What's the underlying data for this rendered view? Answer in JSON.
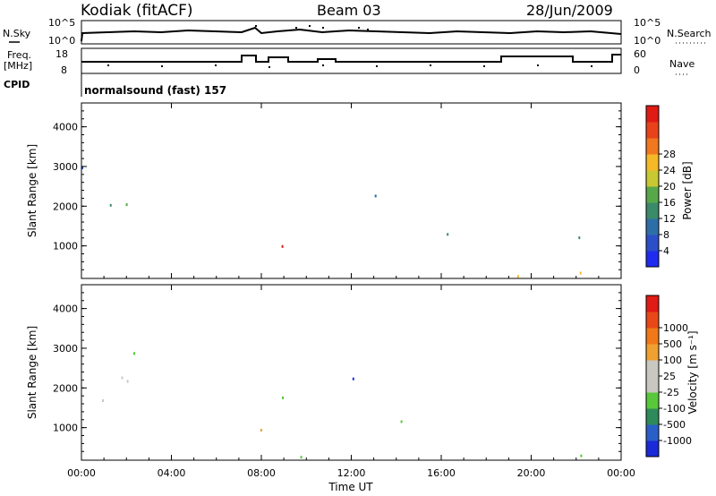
{
  "header": {
    "station": "Kodiak (fitACF)",
    "beam": "Beam 03",
    "date": "28/Jun/2009"
  },
  "summary": {
    "nsky_label": "N.Sky",
    "nsky_ticks": [
      "10^5",
      "10^0"
    ],
    "nsearch_label": "N.Search",
    "nsearch_ticks": [
      "10^5",
      "10^0"
    ],
    "freq_label_1": "Freq.",
    "freq_label_2": "[MHz]",
    "freq_ticks": [
      "18",
      "8"
    ],
    "nave_label": "Nave",
    "nave_ticks": [
      "60",
      "0"
    ],
    "cpid_label": "CPID",
    "cpid_value": "normalsound (fast) 157"
  },
  "chart_data": [
    {
      "type": "heatmap",
      "name": "power",
      "ylabel": "Slant Range [km]",
      "yticks": [
        1000,
        2000,
        3000,
        4000
      ],
      "ylim": [
        180,
        4600
      ],
      "colorbar_label": "Power [dB]",
      "colorbar_ticks": [
        4,
        8,
        12,
        16,
        20,
        24,
        28
      ],
      "colorbar_colors": [
        "#1f2cf0",
        "#2b4fc8",
        "#2e6ea8",
        "#3b8a6a",
        "#58a84a",
        "#c8c832",
        "#f5b826",
        "#f0781e",
        "#e8421a",
        "#e01a14"
      ],
      "regions": [
        {
          "x0": 0.0,
          "x1": 4.0,
          "r0": 2400,
          "r1": 3000,
          "v": 8
        },
        {
          "x0": 0.0,
          "x1": 6.0,
          "r0": 1500,
          "r1": 2200,
          "v": 12
        },
        {
          "x0": 4.5,
          "x1": 7.5,
          "r0": 1300,
          "r1": 1500,
          "v": 22
        },
        {
          "x0": 7.0,
          "x1": 10.5,
          "r0": 700,
          "r1": 1100,
          "v": 28
        },
        {
          "x0": 8.0,
          "x1": 10.0,
          "r0": 300,
          "r1": 500,
          "v": 26
        },
        {
          "x0": 9.0,
          "x1": 11.0,
          "r0": 1300,
          "r1": 1700,
          "v": 18
        },
        {
          "x0": 11.0,
          "x1": 13.5,
          "r0": 2100,
          "r1": 2700,
          "v": 10
        },
        {
          "x0": 12.0,
          "x1": 18.0,
          "r0": 1000,
          "r1": 1400,
          "v": 14
        },
        {
          "x0": 16.0,
          "x1": 18.0,
          "r0": 900,
          "r1": 1200,
          "v": 26
        },
        {
          "x0": 18.0,
          "x1": 24.0,
          "r0": 1100,
          "r1": 1300,
          "v": 8
        },
        {
          "x0": 18.5,
          "x1": 21.0,
          "r0": 1700,
          "r1": 2000,
          "v": 10
        },
        {
          "x0": 21.5,
          "x1": 24.0,
          "r0": 1700,
          "r1": 2000,
          "v": 12
        },
        {
          "x0": 0.0,
          "x1": 24.0,
          "r0": 200,
          "r1": 350,
          "v": 20
        }
      ]
    },
    {
      "type": "heatmap",
      "name": "velocity",
      "ylabel": "Slant Range [km]",
      "xlabel": "Time UT",
      "xticks": [
        "00:00",
        "04:00",
        "08:00",
        "12:00",
        "16:00",
        "20:00",
        "00:00"
      ],
      "xlim": [
        0,
        24
      ],
      "yticks": [
        1000,
        2000,
        3000,
        4000
      ],
      "ylim": [
        180,
        4600
      ],
      "colorbar_label": "Velocity [m s⁻¹]",
      "colorbar_ticks": [
        "1000",
        "500",
        "100",
        "25",
        "-25",
        "-100",
        "-500",
        "-1000"
      ],
      "colorbar_colors": [
        "#1a2ad8",
        "#2a5fc8",
        "#2e8a5a",
        "#58c83a",
        "#c8c8c0",
        "#c8c8c0",
        "#f0a030",
        "#f07818",
        "#e84818",
        "#e01a14"
      ],
      "regions": [
        {
          "x0": 0.0,
          "x1": 4.0,
          "r0": 2400,
          "r1": 2900,
          "v": "25"
        },
        {
          "x0": 0.0,
          "x1": 6.0,
          "r0": 1400,
          "r1": 2300,
          "v": "25"
        },
        {
          "x0": 6.0,
          "x1": 10.0,
          "r0": 1300,
          "r1": 1800,
          "v": "100"
        },
        {
          "x0": 7.0,
          "x1": 10.5,
          "r0": 700,
          "r1": 1100,
          "v": "-100"
        },
        {
          "x0": 9.0,
          "x1": 11.0,
          "r0": 1300,
          "r1": 1700,
          "v": "100"
        },
        {
          "x0": 11.0,
          "x1": 13.5,
          "r0": 2100,
          "r1": 2700,
          "v": "25"
        },
        {
          "x0": 12.0,
          "x1": 18.0,
          "r0": 1000,
          "r1": 1400,
          "v": "100"
        },
        {
          "x0": 18.5,
          "x1": 21.0,
          "r0": 1700,
          "r1": 2000,
          "v": "-100"
        },
        {
          "x0": 21.5,
          "x1": 24.0,
          "r0": 1700,
          "r1": 2000,
          "v": "-100"
        },
        {
          "x0": 20.5,
          "x1": 22.0,
          "r0": 2300,
          "r1": 2700,
          "v": "-500"
        },
        {
          "x0": 0.0,
          "x1": 24.0,
          "r0": 200,
          "r1": 350,
          "v": "100"
        }
      ]
    }
  ]
}
